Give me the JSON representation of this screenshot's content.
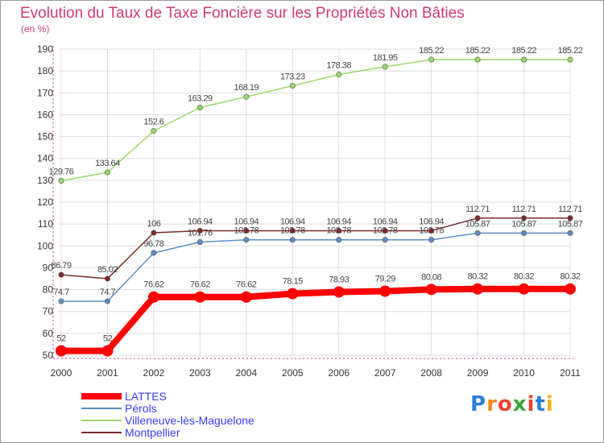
{
  "page": {
    "title": "Evolution du Taux de Taxe Foncière sur les Propriétés Non Bâties",
    "subtitle": "(en %)",
    "logo": "Proxiti"
  },
  "colors": {
    "title": "#cc3a7a",
    "grid": "#dddddd",
    "axis_ticks": "#cc3a7a"
  },
  "chart_data": {
    "type": "line",
    "title": "Evolution du Taux de Taxe Foncière sur les Propriétés Non Bâties",
    "ylabel": "(en %)",
    "xlabel": "",
    "categories": [
      "2000",
      "2001",
      "2002",
      "2003",
      "2004",
      "2005",
      "2006",
      "2007",
      "2008",
      "2009",
      "2010",
      "2011"
    ],
    "ylim": [
      50,
      190
    ],
    "yticks": [
      50,
      60,
      70,
      80,
      90,
      100,
      110,
      120,
      130,
      140,
      150,
      160,
      170,
      180,
      190
    ],
    "grid": true,
    "legend_position": "bottom-left",
    "series": [
      {
        "name": "LATTES",
        "color": "#ff0000",
        "legend_text_color": "#3a3aff",
        "line_width": 8,
        "values": [
          52,
          52,
          76.62,
          76.62,
          76.62,
          78.15,
          78.93,
          79.29,
          80.08,
          80.32,
          80.32,
          80.32
        ],
        "labels": [
          "52",
          "52",
          "76.62",
          "76.62",
          "76.62",
          "78.15",
          "78.93",
          "79.29",
          "80.08",
          "80.32",
          "80.32",
          "80.32"
        ]
      },
      {
        "name": "Pérols",
        "color": "#5b8fc6",
        "legend_text_color": "#3a3aff",
        "line_width": 1.5,
        "values": [
          74.7,
          74.7,
          96.78,
          101.76,
          102.78,
          102.78,
          102.78,
          102.78,
          102.78,
          105.87,
          105.87,
          105.87
        ],
        "labels": [
          "74.7",
          "74.7",
          "96.78",
          "101.76",
          "102.78",
          "102.78",
          "102.78",
          "102.78",
          "102.78",
          "105.87",
          "105.87",
          "105.87"
        ]
      },
      {
        "name": "Villeneuve-lès-Maguelone",
        "color": "#9ad86a",
        "legend_text_color": "#3a3aff",
        "line_width": 1.5,
        "values": [
          129.76,
          133.64,
          152.6,
          163.29,
          168.19,
          173.23,
          178.38,
          181.95,
          185.22,
          185.22,
          185.22,
          185.22
        ],
        "labels": [
          "129.76",
          "133.64",
          "152.6",
          "163.29",
          "168.19",
          "173.23",
          "178.38",
          "181.95",
          "185.22",
          "185.22",
          "185.22",
          "185.22"
        ]
      },
      {
        "name": "Montpellier",
        "color": "#7a2a2a",
        "legend_text_color": "#3a3aff",
        "line_width": 1.5,
        "values": [
          86.79,
          85.02,
          106,
          106.94,
          106.94,
          106.94,
          106.94,
          106.94,
          106.94,
          112.71,
          112.71,
          112.71
        ],
        "labels": [
          "86.79",
          "85.02",
          "106",
          "106.94",
          "106.94",
          "106.94",
          "106.94",
          "106.94",
          "106.94",
          "112.71",
          "112.71",
          "112.71"
        ]
      }
    ]
  }
}
